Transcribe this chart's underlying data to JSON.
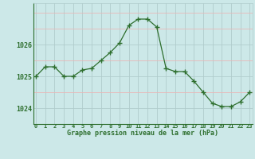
{
  "hours": [
    0,
    1,
    2,
    3,
    4,
    5,
    6,
    7,
    8,
    9,
    10,
    11,
    12,
    13,
    14,
    15,
    16,
    17,
    18,
    19,
    20,
    21,
    22,
    23
  ],
  "pressure": [
    1025.0,
    1025.3,
    1025.3,
    1025.0,
    1025.0,
    1025.2,
    1025.25,
    1025.5,
    1025.75,
    1026.05,
    1026.6,
    1026.8,
    1026.8,
    1026.55,
    1025.25,
    1025.15,
    1025.15,
    1024.85,
    1024.5,
    1024.15,
    1024.05,
    1024.05,
    1024.2,
    1024.5
  ],
  "line_color": "#2d6e2d",
  "marker": "+",
  "bg_color": "#cce8e8",
  "grid_color_vert": "#b0cccc",
  "grid_color_horiz_major": "#b0cccc",
  "grid_color_horiz_minor": "#e8b8b8",
  "title": "Graphe pression niveau de la mer (hPa)",
  "xlabel_ticks": [
    "0",
    "1",
    "2",
    "3",
    "4",
    "5",
    "6",
    "7",
    "8",
    "9",
    "10",
    "11",
    "12",
    "13",
    "14",
    "15",
    "16",
    "17",
    "18",
    "19",
    "20",
    "21",
    "22",
    "23"
  ],
  "yticks": [
    1024,
    1025,
    1026
  ],
  "ylim": [
    1023.5,
    1027.3
  ],
  "xlim": [
    -0.3,
    23.3
  ]
}
